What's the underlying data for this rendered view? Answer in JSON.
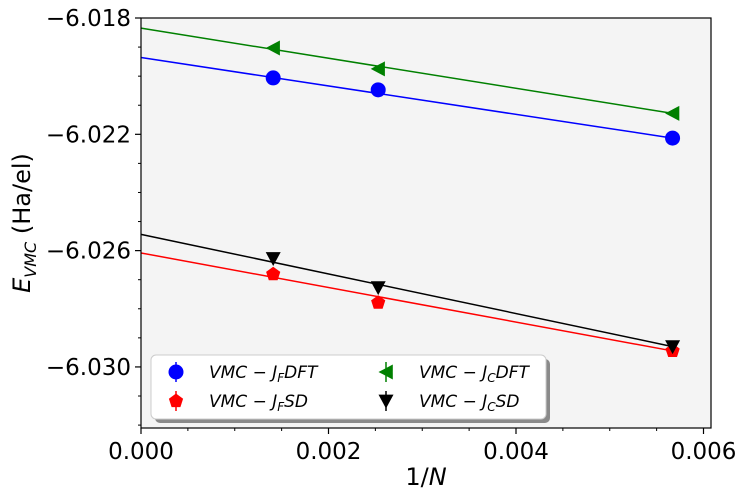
{
  "chart_data": {
    "type": "scatter",
    "title": "",
    "xlabel": "1/N",
    "ylabel": "E_VMC (Ha/el)",
    "xlim": [
      0.0,
      0.00608
    ],
    "ylim": [
      -6.0321,
      -6.018
    ],
    "x_ticks": [
      {
        "value": 0.0,
        "label": "0.000"
      },
      {
        "value": 0.002,
        "label": "0.002"
      },
      {
        "value": 0.004,
        "label": "0.004"
      },
      {
        "value": 0.006,
        "label": "0.006"
      }
    ],
    "y_ticks": [
      {
        "value": -6.018,
        "label": "−6.018"
      },
      {
        "value": -6.022,
        "label": "−6.022"
      },
      {
        "value": -6.026,
        "label": "−6.026"
      },
      {
        "value": -6.03,
        "label": "−6.030"
      }
    ],
    "series": [
      {
        "name": "VMC − J_F DFT",
        "color": "#0000ff",
        "marker": "circle",
        "x": [
          0.00141,
          0.00253,
          0.00567
        ],
        "y": [
          -6.02006,
          -6.02047,
          -6.02213
        ],
        "fit": {
          "x": [
            0.0,
            0.00567
          ],
          "y": [
            -6.01936,
            -6.02213
          ]
        }
      },
      {
        "name": "VMC − J_C DFT",
        "color": "#008000",
        "marker": "triangle-left",
        "x": [
          0.00141,
          0.00253,
          0.00567
        ],
        "y": [
          -6.01903,
          -6.01975,
          -6.02128
        ],
        "fit": {
          "x": [
            0.0,
            0.00567
          ],
          "y": [
            -6.01835,
            -6.02128
          ]
        }
      },
      {
        "name": "VMC − J_F SD",
        "color": "#ff0000",
        "marker": "pentagon",
        "x": [
          0.00141,
          0.00253,
          0.00567
        ],
        "y": [
          -6.02681,
          -6.02779,
          -6.02945
        ],
        "fit": {
          "x": [
            0.0,
            0.00567
          ],
          "y": [
            -6.02608,
            -6.02945
          ]
        }
      },
      {
        "name": "VMC − J_C SD",
        "color": "#000000",
        "marker": "triangle-down",
        "x": [
          0.00141,
          0.00253,
          0.00567
        ],
        "y": [
          -6.02627,
          -6.02727,
          -6.0293
        ],
        "fit": {
          "x": [
            0.0,
            0.00567
          ],
          "y": [
            -6.02544,
            -6.0293
          ]
        }
      }
    ],
    "legend": {
      "placement": "lower-left",
      "columns": 2,
      "entries": [
        {
          "series": 0,
          "main": "VMC − J",
          "sub": "F",
          "tail": "DFT"
        },
        {
          "series": 1,
          "main": "VMC − J",
          "sub": "C",
          "tail": "DFT"
        },
        {
          "series": 2,
          "main": "VMC − J",
          "sub": "F",
          "tail": "SD"
        },
        {
          "series": 3,
          "main": "VMC − J",
          "sub": "C",
          "tail": "SD"
        }
      ]
    },
    "ylabel_parts": {
      "main": "E",
      "sub": "VMC",
      "tail": " (Ha/el)"
    },
    "xlabel_parts": {
      "main": "1/",
      "italic": "N"
    },
    "background_color": "#f4f4f4"
  }
}
